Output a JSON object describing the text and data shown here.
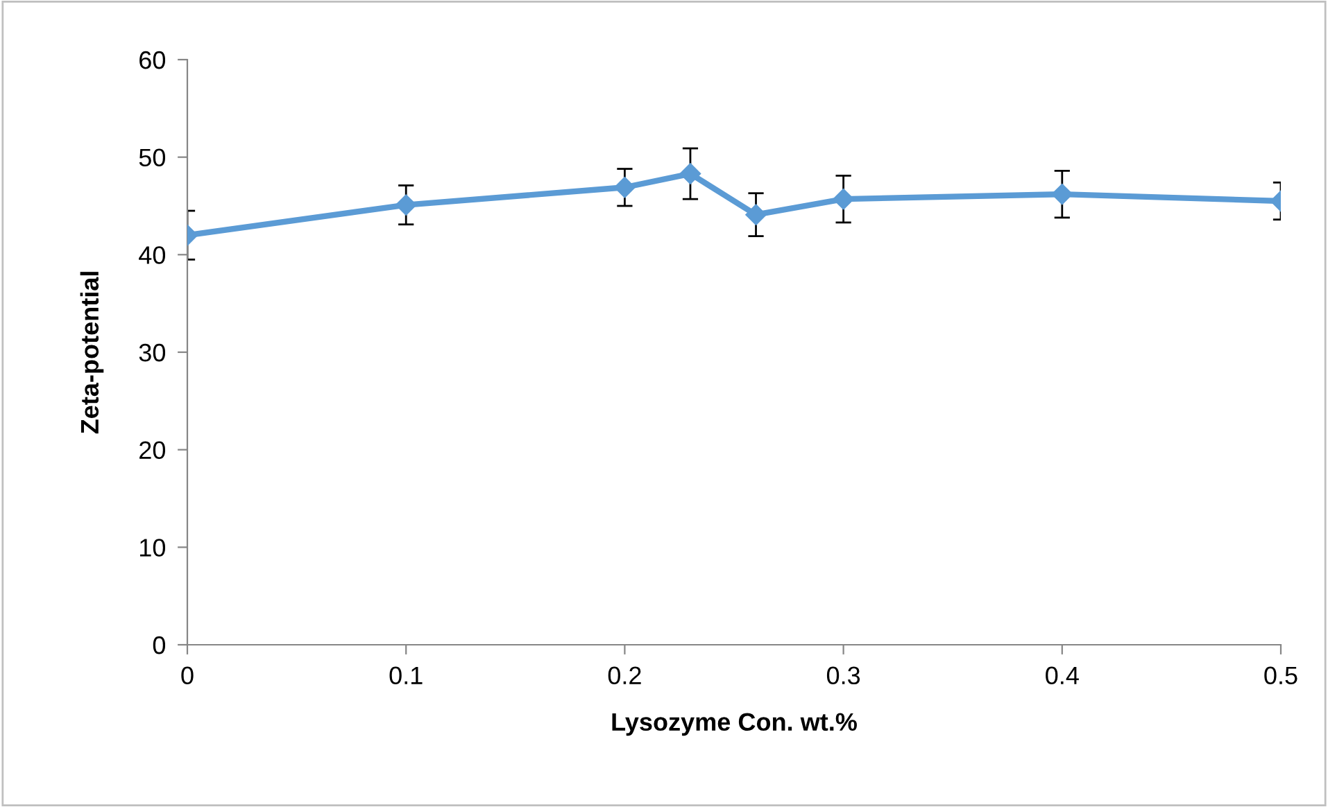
{
  "chart_data": {
    "type": "line",
    "xlabel": "Lysozyme Con. wt.%",
    "ylabel": "Zeta-potential",
    "x": [
      0,
      0.1,
      0.2,
      0.23,
      0.26,
      0.3,
      0.4,
      0.5
    ],
    "series": [
      {
        "color": "#5b9bd5",
        "values": [
          42.0,
          45.1,
          46.9,
          48.3,
          44.1,
          45.7,
          46.2,
          45.5
        ],
        "errors": [
          2.5,
          2.0,
          1.9,
          2.6,
          2.2,
          2.4,
          2.4,
          1.9
        ]
      }
    ],
    "xlim": [
      0,
      0.5
    ],
    "xticks": [
      0,
      0.1,
      0.2,
      0.3,
      0.4,
      0.5
    ],
    "ylim": [
      0,
      60
    ],
    "yticks": [
      0,
      10,
      20,
      30,
      40,
      50,
      60
    ],
    "marker": "diamond",
    "line_style": "solid",
    "grid": false,
    "legend": false
  }
}
